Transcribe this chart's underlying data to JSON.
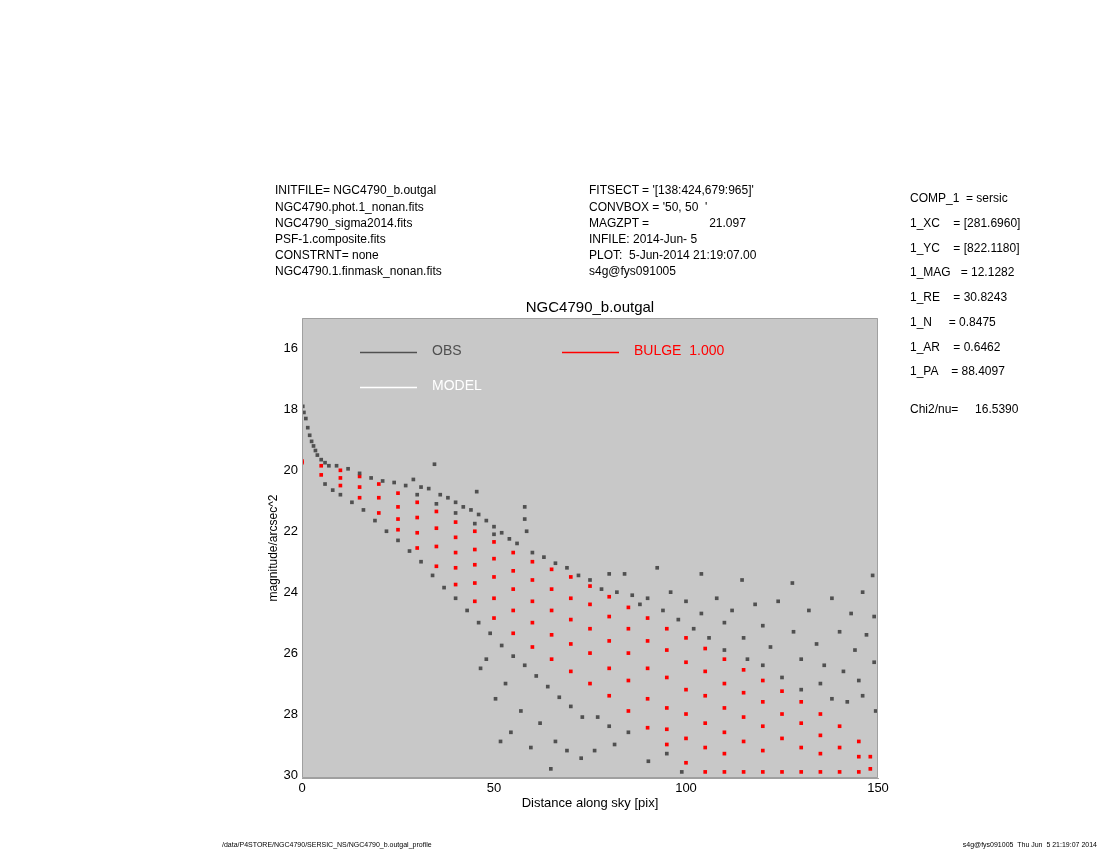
{
  "chart_data": {
    "type": "scatter",
    "title": "NGC4790_b.outgal",
    "xlabel": "Distance along sky [pix]",
    "ylabel": "magnitude/arcsec^2",
    "xlim": [
      0,
      150
    ],
    "xticks": [
      0,
      50,
      100,
      150
    ],
    "ylim": [
      30.1,
      15
    ],
    "yticks": [
      16,
      18,
      20,
      22,
      24,
      26,
      28,
      30
    ],
    "legend": "top left",
    "series": [
      {
        "name": "OBS",
        "color": "#505050",
        "marker": "square",
        "x": [
          0.2,
          0.5,
          1,
          1.5,
          2,
          2.5,
          3,
          3.5,
          4,
          5,
          6,
          7,
          9,
          12,
          15,
          18,
          21,
          24,
          27,
          29,
          31,
          33,
          34.5,
          36,
          38,
          40,
          42,
          44,
          45.5,
          46,
          48,
          50,
          52,
          54,
          56,
          58,
          58,
          58.5,
          60,
          63,
          66,
          69,
          72,
          30,
          35,
          40,
          45,
          50,
          6,
          8,
          10,
          13,
          16,
          19,
          22,
          25,
          28,
          31,
          34,
          37,
          40,
          43,
          46,
          49,
          52,
          55,
          58,
          61,
          64,
          67,
          70,
          73,
          46.5,
          48,
          50.4,
          51.7,
          53,
          54.4,
          57,
          59.6,
          62,
          64.8,
          66,
          69,
          72.7,
          76.2,
          77,
          80,
          81.4,
          85,
          90.2,
          95,
          98.9,
          75,
          78,
          80,
          82,
          84,
          86,
          88,
          90,
          92.5,
          94,
          96,
          98,
          100,
          102,
          104,
          104,
          106,
          108,
          110,
          110,
          112,
          114.6,
          115,
          116,
          118,
          120,
          120,
          122,
          124,
          125,
          127.7,
          128,
          130,
          130,
          132,
          134,
          135,
          136,
          138,
          138,
          140,
          141,
          142,
          143,
          144,
          145,
          146,
          146,
          147,
          148.6,
          149,
          149.4,
          149
        ],
        "values": [
          17.9,
          18.1,
          18.3,
          18.6,
          18.85,
          19.05,
          19.2,
          19.35,
          19.5,
          19.65,
          19.75,
          19.85,
          19.85,
          19.95,
          20.1,
          20.25,
          20.35,
          20.4,
          20.5,
          20.3,
          20.55,
          20.6,
          19.8,
          20.8,
          20.9,
          21.05,
          21.2,
          21.3,
          20.7,
          21.45,
          21.65,
          21.85,
          22.05,
          22.25,
          22.4,
          21.2,
          21.6,
          22.0,
          22.7,
          22.85,
          23.05,
          23.2,
          23.45,
          20.8,
          21.1,
          21.4,
          21.75,
          22.1,
          20.45,
          20.65,
          20.8,
          21.05,
          21.3,
          21.65,
          22.0,
          22.3,
          22.65,
          23.0,
          23.45,
          23.85,
          24.2,
          24.6,
          25.0,
          25.35,
          25.75,
          26.1,
          26.4,
          26.75,
          27.1,
          27.45,
          27.75,
          28.1,
          26.5,
          26.2,
          27.5,
          28.9,
          27.0,
          28.6,
          27.9,
          29.1,
          28.3,
          29.8,
          28.9,
          29.2,
          29.45,
          29.2,
          28.1,
          28.4,
          29.0,
          28.6,
          29.55,
          29.3,
          29.9,
          23.6,
          23.9,
          23.4,
          24.0,
          23.4,
          24.1,
          24.4,
          24.2,
          23.2,
          24.6,
          24.0,
          24.9,
          24.3,
          25.2,
          23.4,
          24.7,
          25.5,
          24.2,
          25.0,
          25.9,
          24.6,
          23.6,
          25.5,
          26.2,
          24.4,
          25.1,
          26.4,
          25.8,
          24.3,
          26.8,
          23.7,
          25.3,
          26.2,
          27.2,
          24.6,
          25.7,
          27.0,
          26.4,
          24.2,
          27.5,
          25.3,
          26.6,
          27.6,
          24.7,
          25.9,
          26.9,
          24.0,
          27.4,
          25.4,
          23.45,
          26.3,
          27.9,
          24.8
        ]
      },
      {
        "name": "MODEL",
        "color": "#ffffff"
      },
      {
        "name": "BULGE  1.000",
        "color": "#ff0000",
        "marker": "square",
        "x": [
          0,
          0,
          5,
          5,
          10,
          10,
          10,
          15,
          15,
          15,
          20,
          20,
          20,
          25,
          25,
          25,
          25,
          30,
          30,
          30,
          30,
          35,
          35,
          35,
          35,
          40,
          40,
          40,
          40,
          40,
          45,
          45,
          45,
          45,
          45,
          50,
          50,
          50,
          50,
          50,
          55,
          55,
          55,
          55,
          55,
          60,
          60,
          60,
          60,
          60,
          65,
          65,
          65,
          65,
          65,
          70,
          70,
          70,
          70,
          70,
          75,
          75,
          75,
          75,
          75,
          80,
          80,
          80,
          80,
          80,
          85,
          85,
          85,
          85,
          85,
          90,
          90,
          90,
          90,
          90,
          95,
          95,
          95,
          95,
          95,
          95,
          100,
          100,
          100,
          100,
          100,
          100,
          105,
          105,
          105,
          105,
          105,
          105,
          110,
          110,
          110,
          110,
          110,
          110,
          115,
          115,
          115,
          115,
          115,
          120,
          120,
          120,
          120,
          120,
          125,
          125,
          125,
          125,
          130,
          130,
          130,
          130,
          135,
          135,
          135,
          135,
          140,
          140,
          140,
          145,
          145,
          145,
          148,
          148
        ],
        "values": [
          19.7,
          19.75,
          19.85,
          20.15,
          20.0,
          20.25,
          20.5,
          20.2,
          20.55,
          20.9,
          20.45,
          20.9,
          21.4,
          20.75,
          21.2,
          21.6,
          21.95,
          21.05,
          21.55,
          22.05,
          22.55,
          21.35,
          21.9,
          22.5,
          23.15,
          21.7,
          22.2,
          22.7,
          23.2,
          23.75,
          22.0,
          22.6,
          23.1,
          23.7,
          24.3,
          22.35,
          22.9,
          23.5,
          24.2,
          24.85,
          22.7,
          23.3,
          23.9,
          24.6,
          25.35,
          23.0,
          23.6,
          24.3,
          25.0,
          25.8,
          23.25,
          23.9,
          24.6,
          25.4,
          26.2,
          23.5,
          24.2,
          24.9,
          25.7,
          26.6,
          23.8,
          24.4,
          25.2,
          26.0,
          27.0,
          24.15,
          24.8,
          25.6,
          26.5,
          27.4,
          24.5,
          25.2,
          26.0,
          26.9,
          27.9,
          24.85,
          25.6,
          26.5,
          27.5,
          28.45,
          25.2,
          25.9,
          26.8,
          27.8,
          28.5,
          29.0,
          25.5,
          26.3,
          27.2,
          28.0,
          28.8,
          29.6,
          25.85,
          26.6,
          27.4,
          28.3,
          29.1,
          29.9,
          26.2,
          27.0,
          27.8,
          28.6,
          29.3,
          29.9,
          26.55,
          27.3,
          28.1,
          28.9,
          29.9,
          26.9,
          27.6,
          28.4,
          29.2,
          29.9,
          27.25,
          28.0,
          28.8,
          29.9,
          27.6,
          28.3,
          29.1,
          29.9,
          28.0,
          28.7,
          29.3,
          29.9,
          28.4,
          29.1,
          29.9,
          28.9,
          29.4,
          29.9,
          29.4,
          29.8
        ]
      }
    ],
    "annotations": [
      "INITFILE= NGC4790_b.outgal",
      "NGC4790.phot.1_nonan.fits",
      "NGC4790_sigma2014.fits",
      "PSF-1.composite.fits",
      "CONSTRNT= none",
      "NGC4790.1.finmask_nonan.fits",
      "FITSECT = '[138:424,679:965]'",
      "CONVBOX = '50, 50  '",
      "MAGZPT =                  21.097",
      "INFILE: 2014-Jun- 5",
      "PLOT:  5-Jun-2014 21:19:07.00",
      "s4g@fys091005",
      "COMP_1  = sersic",
      "1_XC    = [281.6960]",
      "1_YC    = [822.1180]",
      "1_MAG   = 12.1282",
      "1_RE    = 30.8243",
      "1_N     = 0.8475",
      "1_AR    = 0.6462",
      "1_PA    = 88.4097",
      "Chi2/nu=     16.5390",
      "/data/P4STORE/NGC4790/SERSIC_NS/NGC4790_b.outgal_profile",
      "s4g@fys091005  Thu Jun  5 21:19:07 2014"
    ]
  }
}
